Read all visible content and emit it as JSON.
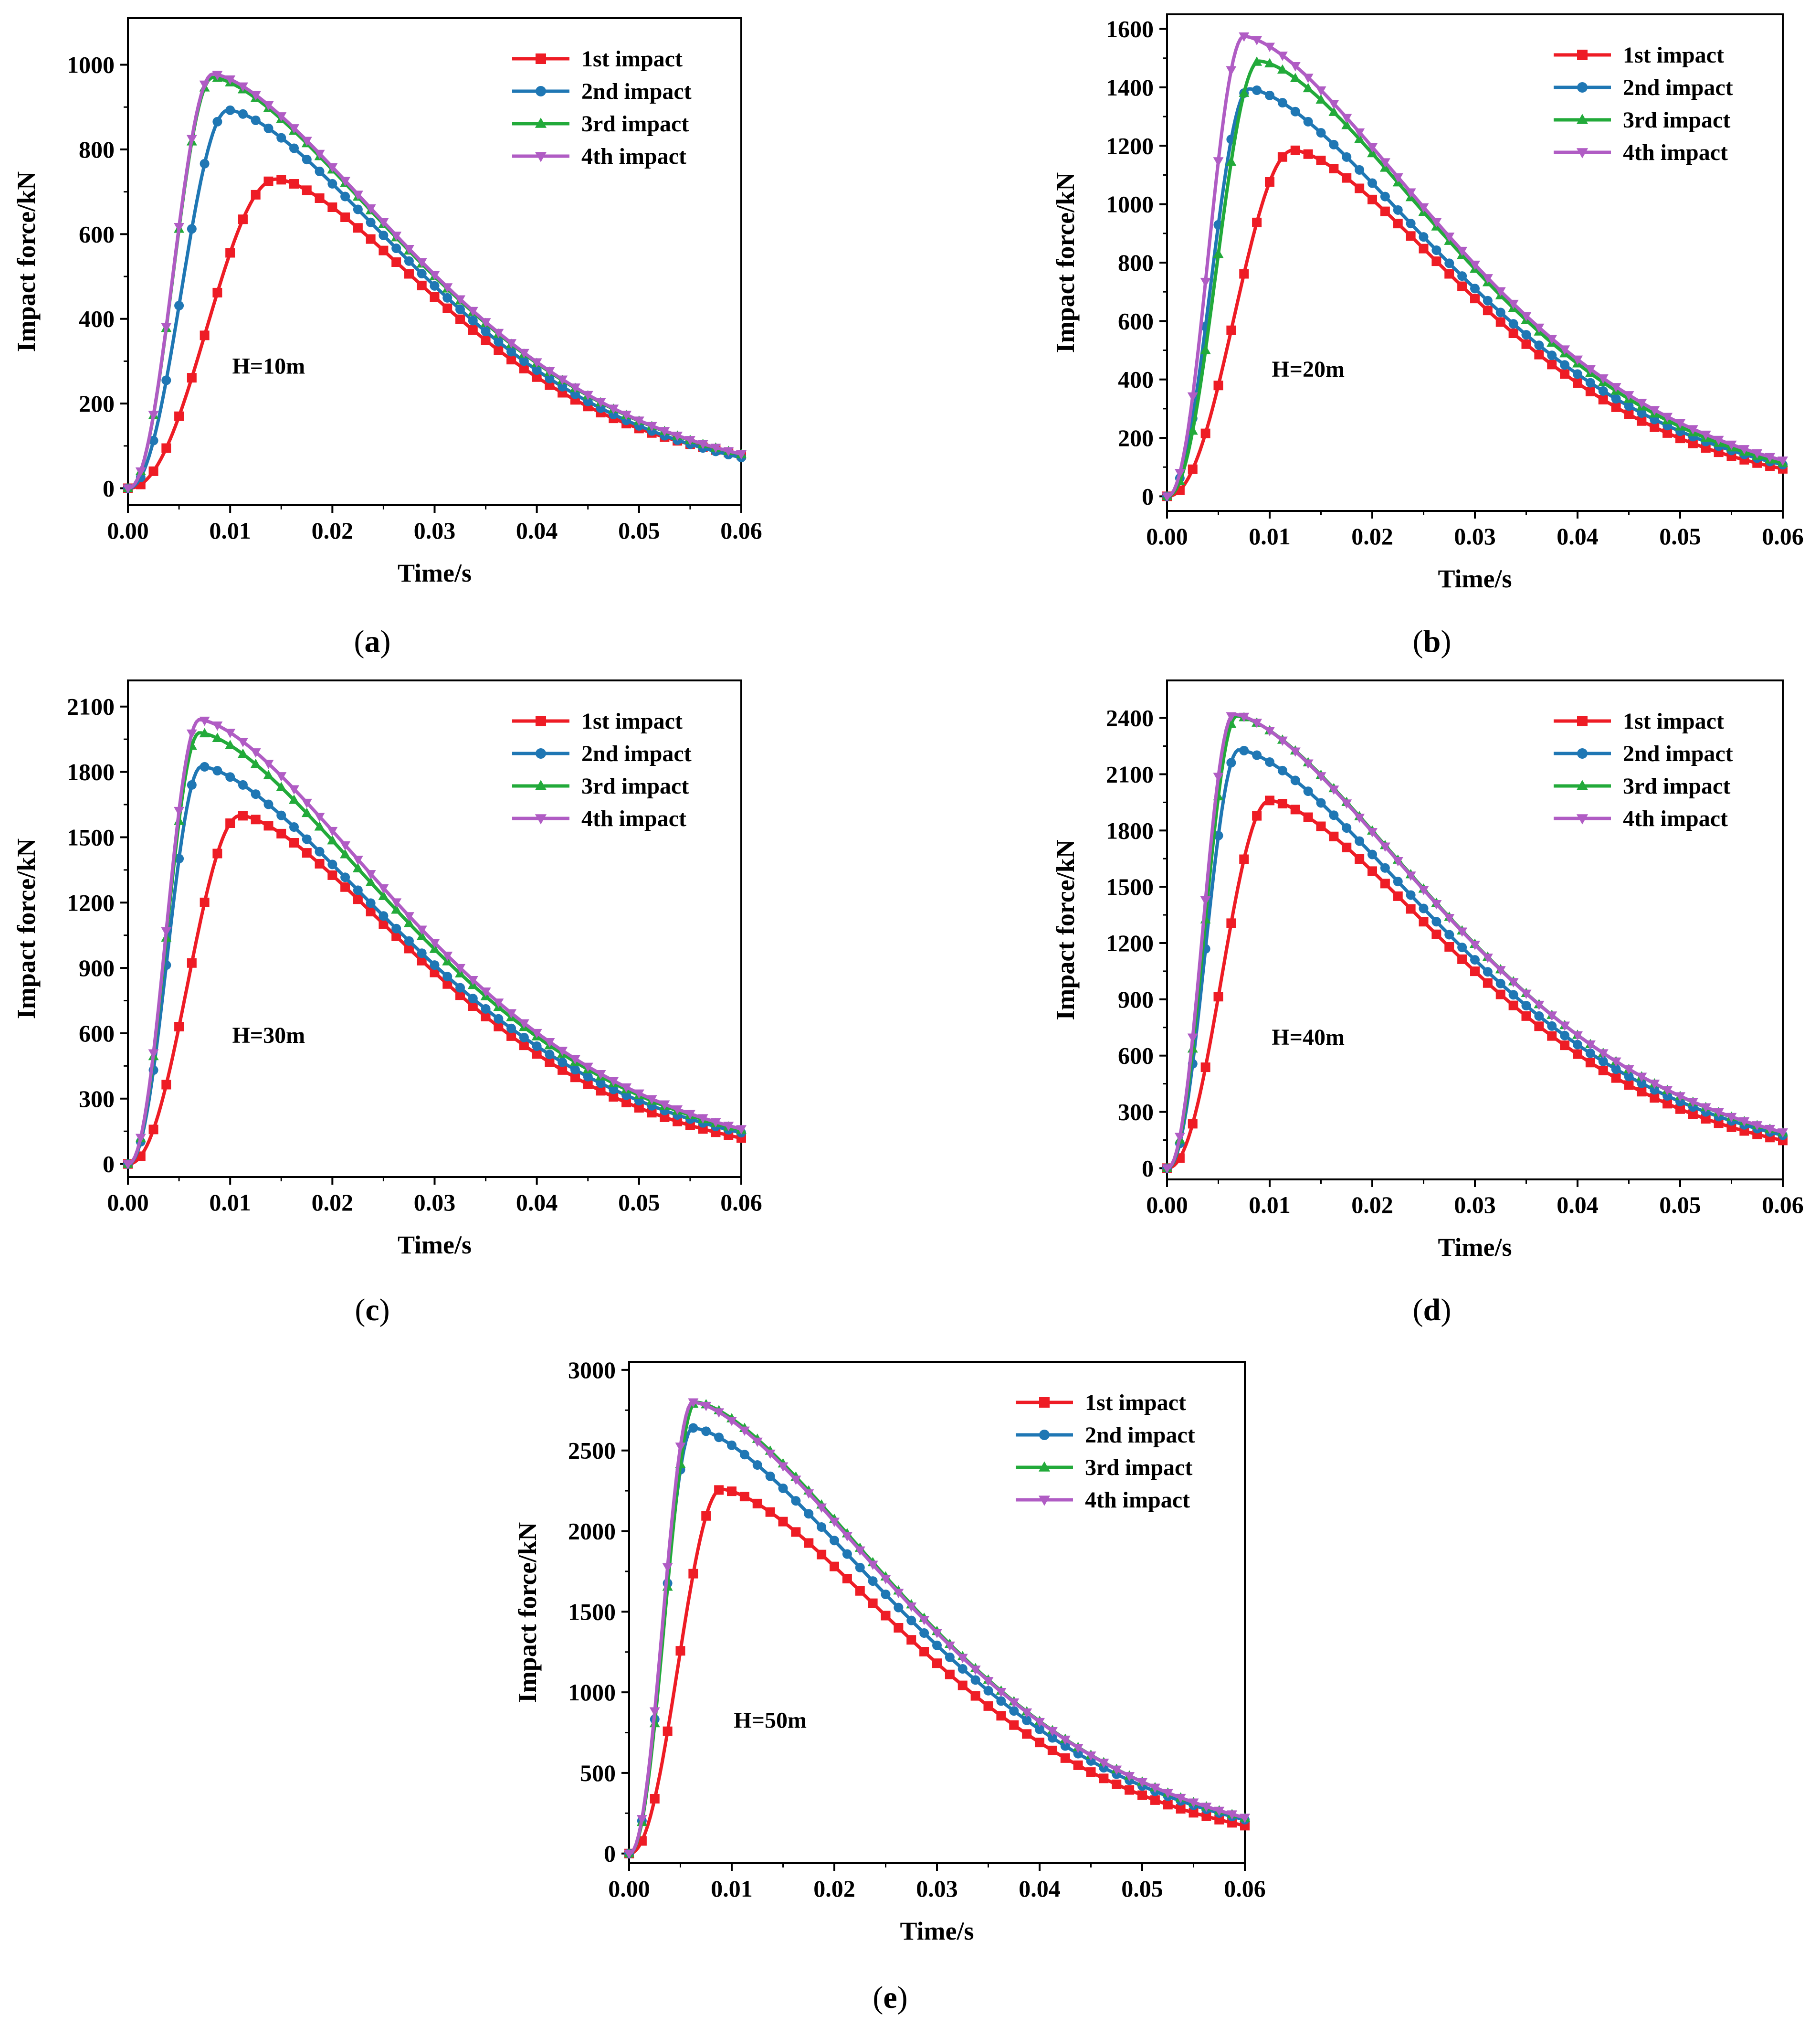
{
  "figure": {
    "series_names": [
      "1st impact",
      "2nd impact",
      "3rd impact",
      "4th impact"
    ],
    "series_colors": [
      "#ee1c25",
      "#1f77b4",
      "#22aa3a",
      "#b05cc4"
    ],
    "series_markers": [
      "square",
      "circle",
      "triangle-up",
      "triangle-down"
    ]
  },
  "chart_data": [
    {
      "type": "line",
      "panel_label": "a",
      "annotation": "H=10m",
      "xlabel": "Time/s",
      "ylabel": "Impact force/kN",
      "xlim": [
        0,
        0.06
      ],
      "ylim": [
        -40,
        1110
      ],
      "xticks": [
        0,
        0.01,
        0.02,
        0.03,
        0.04,
        0.05,
        0.06
      ],
      "xtick_labels": [
        "0.00",
        "0.01",
        "0.02",
        "0.03",
        "0.04",
        "0.05",
        "0.06"
      ],
      "yticks": [
        0,
        200,
        400,
        600,
        800,
        1000
      ],
      "ytick_labels": [
        "0",
        "200",
        "400",
        "600",
        "800",
        "1000"
      ],
      "legend_position": "top-right",
      "series": [
        {
          "name": "1st impact",
          "peak_time": 0.0145,
          "peak": 730,
          "tail": 28
        },
        {
          "name": "2nd impact",
          "peak_time": 0.0098,
          "peak": 893,
          "tail": 5
        },
        {
          "name": "3rd impact",
          "peak_time": 0.0083,
          "peak": 970,
          "tail": 5
        },
        {
          "name": "4th impact",
          "peak_time": 0.0083,
          "peak": 978,
          "tail": 5
        }
      ]
    },
    {
      "type": "line",
      "panel_label": "b",
      "annotation": "H=20m",
      "xlabel": "Time/s",
      "ylabel": "Impact force/kN",
      "xlim": [
        0,
        0.06
      ],
      "ylim": [
        -50,
        1650
      ],
      "xticks": [
        0,
        0.01,
        0.02,
        0.03,
        0.04,
        0.05,
        0.06
      ],
      "xtick_labels": [
        "0.00",
        "0.01",
        "0.02",
        "0.03",
        "0.04",
        "0.05",
        "0.06"
      ],
      "yticks": [
        0,
        200,
        400,
        600,
        800,
        1000,
        1200,
        1400,
        1600
      ],
      "ytick_labels": [
        "0",
        "200",
        "400",
        "600",
        "800",
        "1000",
        "1200",
        "1400",
        "1600"
      ],
      "legend_position": "top-right",
      "series": [
        {
          "name": "1st impact",
          "peak_time": 0.0123,
          "peak": 1185,
          "tail": 8
        },
        {
          "name": "2nd impact",
          "peak_time": 0.008,
          "peak": 1395,
          "tail": 0
        },
        {
          "name": "3rd impact",
          "peak_time": 0.009,
          "peak": 1490,
          "tail": 0
        },
        {
          "name": "4th impact",
          "peak_time": 0.0075,
          "peak": 1575,
          "tail": 0
        }
      ]
    },
    {
      "type": "line",
      "panel_label": "c",
      "annotation": "H=30m",
      "xlabel": "Time/s",
      "ylabel": "Impact force/kN",
      "xlim": [
        0,
        0.06
      ],
      "ylim": [
        -60,
        2220
      ],
      "xticks": [
        0,
        0.01,
        0.02,
        0.03,
        0.04,
        0.05,
        0.06
      ],
      "xtick_labels": [
        "0.00",
        "0.01",
        "0.02",
        "0.03",
        "0.04",
        "0.05",
        "0.06"
      ],
      "yticks": [
        0,
        300,
        600,
        900,
        1200,
        1500,
        1800,
        2100
      ],
      "ytick_labels": [
        "0",
        "300",
        "600",
        "900",
        "1200",
        "1500",
        "1800",
        "2100"
      ],
      "legend_position": "top-right",
      "series": [
        {
          "name": "1st impact",
          "peak_time": 0.011,
          "peak": 1600,
          "tail": 0
        },
        {
          "name": "2nd impact",
          "peak_time": 0.0072,
          "peak": 1825,
          "tail": 0
        },
        {
          "name": "3rd impact",
          "peak_time": 0.007,
          "peak": 1980,
          "tail": 0
        },
        {
          "name": "4th impact",
          "peak_time": 0.007,
          "peak": 2040,
          "tail": 0
        }
      ]
    },
    {
      "type": "line",
      "panel_label": "d",
      "annotation": "H=40m",
      "xlabel": "Time/s",
      "ylabel": "Impact force/kN",
      "xlim": [
        0,
        0.06
      ],
      "ylim": [
        -60,
        2600
      ],
      "xticks": [
        0,
        0.01,
        0.02,
        0.03,
        0.04,
        0.05,
        0.06
      ],
      "xtick_labels": [
        "0.00",
        "0.01",
        "0.02",
        "0.03",
        "0.04",
        "0.05",
        "0.06"
      ],
      "yticks": [
        0,
        300,
        600,
        900,
        1200,
        1500,
        1800,
        2100,
        2400
      ],
      "ytick_labels": [
        "0",
        "300",
        "600",
        "900",
        "1200",
        "1500",
        "1800",
        "2100",
        "2400"
      ],
      "legend_position": "top-right",
      "series": [
        {
          "name": "1st impact",
          "peak_time": 0.01,
          "peak": 1960,
          "tail": 0
        },
        {
          "name": "2nd impact",
          "peak_time": 0.007,
          "peak": 2230,
          "tail": 0
        },
        {
          "name": "3rd impact",
          "peak_time": 0.0068,
          "peak": 2410,
          "tail": 0
        },
        {
          "name": "4th impact",
          "peak_time": 0.0065,
          "peak": 2420,
          "tail": 0
        }
      ]
    },
    {
      "type": "line",
      "panel_label": "e",
      "annotation": "H=50m",
      "xlabel": "Time/s",
      "ylabel": "Impact force/kN",
      "xlim": [
        0,
        0.06
      ],
      "ylim": [
        -60,
        3050
      ],
      "xticks": [
        0,
        0.01,
        0.02,
        0.03,
        0.04,
        0.05,
        0.06
      ],
      "xtick_labels": [
        "0.00",
        "0.01",
        "0.02",
        "0.03",
        "0.04",
        "0.05",
        "0.06"
      ],
      "yticks": [
        0,
        500,
        1000,
        1500,
        2000,
        2500,
        3000
      ],
      "ytick_labels": [
        "0",
        "500",
        "1000",
        "1500",
        "2000",
        "2500",
        "3000"
      ],
      "legend_position": "top-right",
      "series": [
        {
          "name": "1st impact",
          "peak_time": 0.009,
          "peak": 2260,
          "tail": 0
        },
        {
          "name": "2nd impact",
          "peak_time": 0.0062,
          "peak": 2640,
          "tail": 0
        },
        {
          "name": "3rd impact",
          "peak_time": 0.0065,
          "peak": 2800,
          "tail": 0
        },
        {
          "name": "4th impact",
          "peak_time": 0.0062,
          "peak": 2800,
          "tail": 0
        }
      ]
    }
  ]
}
